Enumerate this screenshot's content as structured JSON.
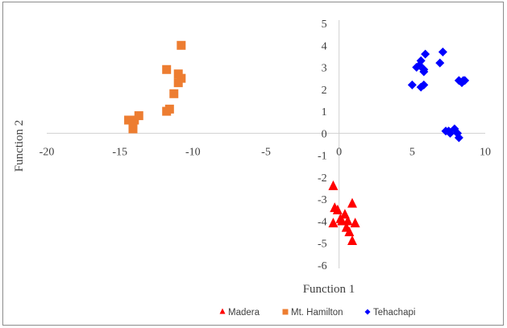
{
  "chart_data": {
    "type": "scatter",
    "title": "",
    "xlabel": "Function 1",
    "ylabel": "Function 2",
    "xlim": [
      -20,
      10
    ],
    "ylim": [
      -6,
      5
    ],
    "x_ticks": [
      -20,
      -15,
      -10,
      -5,
      0,
      5,
      10
    ],
    "y_ticks": [
      5,
      4,
      3,
      2,
      1,
      0,
      -1,
      -2,
      -3,
      -4,
      -5,
      -6
    ],
    "grid": false,
    "legend_position": "bottom",
    "series": [
      {
        "name": "Madera",
        "marker": "triangle",
        "color": "#ff0000",
        "points": [
          [
            -0.4,
            -2.4
          ],
          [
            -0.3,
            -3.4
          ],
          [
            0.4,
            -3.7
          ],
          [
            0.9,
            -3.2
          ],
          [
            -0.4,
            -4.1
          ],
          [
            0.1,
            -3.9
          ],
          [
            0.5,
            -4.3
          ],
          [
            1.1,
            -4.1
          ],
          [
            0.7,
            -4.5
          ],
          [
            0.9,
            -4.9
          ],
          [
            0.2,
            -4.0
          ],
          [
            -0.1,
            -3.5
          ],
          [
            0.6,
            -4.0
          ]
        ]
      },
      {
        "name": "Mt. Hamilton",
        "marker": "square",
        "color": "#ed7d31",
        "points": [
          [
            -10.8,
            4.0
          ],
          [
            -11.8,
            2.9
          ],
          [
            -11.0,
            2.7
          ],
          [
            -10.8,
            2.5
          ],
          [
            -11.0,
            2.3
          ],
          [
            -11.3,
            1.8
          ],
          [
            -11.6,
            1.1
          ],
          [
            -11.8,
            1.0
          ],
          [
            -13.7,
            0.8
          ],
          [
            -14.0,
            0.6
          ],
          [
            -14.4,
            0.6
          ],
          [
            -14.1,
            0.4
          ],
          [
            -14.1,
            0.2
          ]
        ]
      },
      {
        "name": "Tehachapi",
        "marker": "diamond",
        "color": "#0000ff",
        "points": [
          [
            5.9,
            3.6
          ],
          [
            5.6,
            3.3
          ],
          [
            5.5,
            3.1
          ],
          [
            5.8,
            2.9
          ],
          [
            5.3,
            3.0
          ],
          [
            5.8,
            2.8
          ],
          [
            5.0,
            2.2
          ],
          [
            5.6,
            2.1
          ],
          [
            5.8,
            2.2
          ],
          [
            6.9,
            3.2
          ],
          [
            7.1,
            3.7
          ],
          [
            8.2,
            2.4
          ],
          [
            8.4,
            2.3
          ],
          [
            8.5,
            2.4
          ],
          [
            8.6,
            2.4
          ],
          [
            7.3,
            0.1
          ],
          [
            7.6,
            0.0
          ],
          [
            7.9,
            0.2
          ],
          [
            8.1,
            0.0
          ],
          [
            8.2,
            -0.2
          ],
          [
            7.5,
            0.1
          ]
        ]
      }
    ]
  }
}
